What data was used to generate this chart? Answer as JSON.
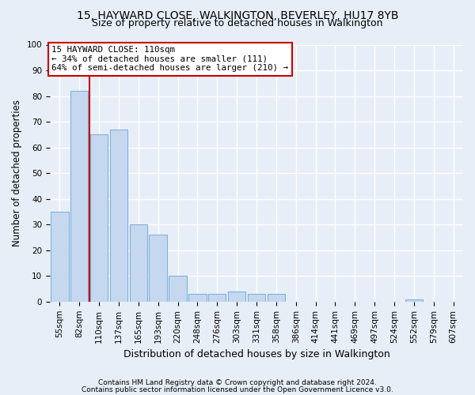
{
  "title1": "15, HAYWARD CLOSE, WALKINGTON, BEVERLEY, HU17 8YB",
  "title2": "Size of property relative to detached houses in Walkington",
  "xlabel": "Distribution of detached houses by size in Walkington",
  "ylabel": "Number of detached properties",
  "categories": [
    "55sqm",
    "82sqm",
    "110sqm",
    "137sqm",
    "165sqm",
    "193sqm",
    "220sqm",
    "248sqm",
    "276sqm",
    "303sqm",
    "331sqm",
    "358sqm",
    "386sqm",
    "414sqm",
    "441sqm",
    "469sqm",
    "497sqm",
    "524sqm",
    "552sqm",
    "579sqm",
    "607sqm"
  ],
  "values": [
    35,
    82,
    65,
    67,
    30,
    26,
    10,
    3,
    3,
    4,
    3,
    3,
    0,
    0,
    0,
    0,
    0,
    0,
    1,
    0,
    0
  ],
  "bar_color": "#c5d8f0",
  "bar_edge_color": "#7fb3d9",
  "vline_x": 1.5,
  "vline_color": "#cc0000",
  "ylim": [
    0,
    100
  ],
  "annotation_text": "15 HAYWARD CLOSE: 110sqm\n← 34% of detached houses are smaller (111)\n64% of semi-detached houses are larger (210) →",
  "annotation_box_color": "#ffffff",
  "annotation_box_edge": "#cc0000",
  "footer1": "Contains HM Land Registry data © Crown copyright and database right 2024.",
  "footer2": "Contains public sector information licensed under the Open Government Licence v3.0.",
  "background_color": "#e8eef8",
  "grid_color": "#ffffff",
  "title1_fontsize": 10,
  "title2_fontsize": 9,
  "tick_fontsize": 7.5,
  "ylabel_fontsize": 8.5,
  "xlabel_fontsize": 9,
  "footer_fontsize": 6.5
}
